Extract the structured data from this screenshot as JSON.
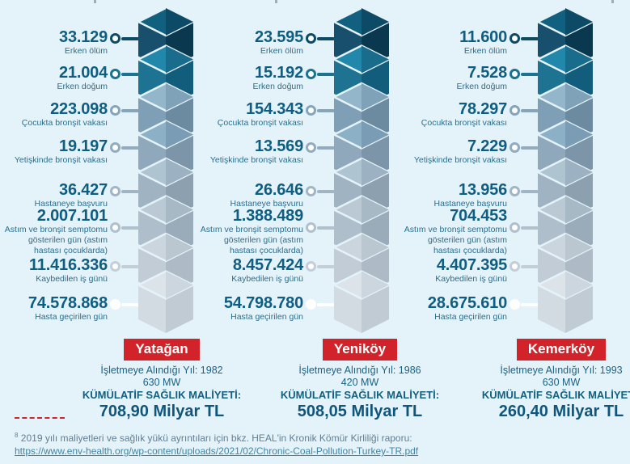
{
  "background": "#e4f2f9",
  "accent_red": "#d2232a",
  "text_teal": "#14607f",
  "chart_data": {
    "type": "bar",
    "title": "",
    "categories": [
      "Erken ölüm",
      "Erken doğum",
      "Çocukta bronşit vakası",
      "Yetişkinde bronşit vakası",
      "Hastaneye başvuru",
      "Astım ve bronşit semptomu gösterilen gün (astım hastası çocuklarda)",
      "Kaybedilen iş günü",
      "Hasta geçirilen gün"
    ],
    "series": [
      {
        "name": "Yatağan",
        "values": [
          33129,
          21004,
          223098,
          19197,
          36427,
          2007101,
          11416336,
          74578868
        ]
      },
      {
        "name": "Yeniköy",
        "values": [
          23595,
          15192,
          154343,
          13569,
          26646,
          1388489,
          8457424,
          54798780
        ]
      },
      {
        "name": "Kemerköy",
        "values": [
          11600,
          7528,
          78297,
          7229,
          13956,
          704453,
          4407395,
          28675610
        ]
      }
    ],
    "notes": "Kümülatif sağlık maliyeti: Yatağan 708,90 Milyar TL; Yeniköy 508,05 Milyar TL; Kemerköy 260,40 Milyar TL",
    "legend_position": "none",
    "grid": false
  },
  "levels": [
    {
      "label": "Erken ölüm",
      "topL": "#11607f",
      "topR": "#0d4a66",
      "left": "#174f6d",
      "right": "#0a384f",
      "ring": "#0d4a66"
    },
    {
      "label": "Erken doğum",
      "topL": "#2187ab",
      "topR": "#196c8c",
      "left": "#1e7392",
      "right": "#125c7c",
      "ring": "#1b7392"
    },
    {
      "label": "Çocukta bronşit vakası",
      "topL": "#93b6ca",
      "topR": "#7fa2b9",
      "left": "#7f9fb6",
      "right": "#6c8aa0",
      "ring": "#86a4ba"
    },
    {
      "label": "Yetişkinde bronşit vakası",
      "topL": "#8cb0c6",
      "topR": "#7a9cb4",
      "left": "#8fa8bc",
      "right": "#7c95a9",
      "ring": "#93abbf"
    },
    {
      "label": "Hastaneye başvuru",
      "topL": "#afc4d1",
      "topR": "#9cb2c2",
      "left": "#9fb3c3",
      "right": "#8ca0b0",
      "ring": "#a2b5c4"
    },
    {
      "label": "Astım ve bronşit semptomu gösterilen gün (astım hastası çocuklarda)",
      "topL": "#bac9d4",
      "topR": "#a8b9c6",
      "left": "#aebecb",
      "right": "#9aabb9",
      "ring": "#b0c0cc"
    },
    {
      "label": "Kaybedilen iş günü",
      "topL": "#cbd5dd",
      "topR": "#bac6d0",
      "left": "#c1ccd6",
      "right": "#aebbc6",
      "ring": "#c4ced7"
    },
    {
      "label": "Hasta geçirilen gün",
      "topL": "#dce3e9",
      "topR": "#ccd6de",
      "left": "#d3dbe2",
      "right": "#c1cbd4",
      "ring": "#ffffff"
    }
  ],
  "plants": [
    {
      "name": "Yatağan",
      "year": "İşletmeye Alındığı Yıl: 1982",
      "capacity": "630 MW",
      "cost_label": "KÜMÜLATİF SAĞLIK MALİYETİ:",
      "cost": "708,90 Milyar TL",
      "values": [
        "33.129",
        "21.004",
        "223.098",
        "19.197",
        "36.427",
        "2.007.101",
        "11.416.336",
        "74.578.868"
      ]
    },
    {
      "name": "Yeniköy",
      "year": "İşletmeye Alındığı Yıl: 1986",
      "capacity": "420 MW",
      "cost_label": "KÜMÜLATİF SAĞLIK MALİYETİ:",
      "cost": "508,05 Milyar TL",
      "values": [
        "23.595",
        "15.192",
        "154.343",
        "13.569",
        "26.646",
        "1.388.489",
        "8.457.424",
        "54.798.780"
      ]
    },
    {
      "name": "Kemerköy",
      "year": "İşletmeye Alındığı Yıl: 1993",
      "capacity": "630 MW",
      "cost_label": "KÜMÜLATİF SAĞLIK MALİYETİ:",
      "cost": "260,40 Milyar TL",
      "values": [
        "11.600",
        "7.528",
        "78.297",
        "7.229",
        "13.956",
        "704.453",
        "4.407.395",
        "28.675.610"
      ]
    }
  ],
  "footnote": {
    "marker": "8",
    "text": "2019 yılı maliyetleri ve sağlık yükü ayrıntıları için bkz. HEAL'in Kronik Kömür Kirliliği raporu:",
    "link": "https://www.env-health.org/wp-content/uploads/2021/02/Chronic-Coal-Pollution-Turkey-TR.pdf"
  }
}
